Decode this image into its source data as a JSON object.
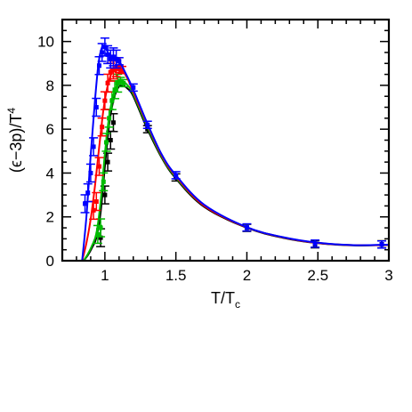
{
  "chart_data": {
    "type": "line",
    "xlabel": "T/T",
    "xlabel_sub": "c",
    "ylabel": "(ϵ−3p)/T",
    "ylabel_sup": "4",
    "xlim": [
      0.7,
      3.0
    ],
    "ylim": [
      0,
      11
    ],
    "x_ticks": [
      1,
      1.5,
      2,
      2.5,
      3
    ],
    "x_tick_labels": [
      "1",
      "1.5",
      "2",
      "2.5",
      "3"
    ],
    "y_ticks": [
      0,
      2,
      4,
      6,
      8,
      10
    ],
    "y_tick_labels": [
      "0",
      "2",
      "4",
      "6",
      "8",
      "10"
    ],
    "grid": false,
    "legend": "none",
    "series": [
      {
        "color": "#000000",
        "x": [
          0.85,
          0.88,
          0.91,
          0.94,
          0.97,
          1.0,
          1.03,
          1.06,
          1.09,
          1.12,
          1.16,
          1.2,
          1.3,
          1.4,
          1.5,
          1.7,
          2.0,
          2.25,
          2.5,
          2.75,
          3.0
        ],
        "y": [
          0.0,
          0.25,
          0.6,
          1.05,
          2.2,
          4.3,
          6.2,
          7.3,
          7.85,
          8.0,
          7.85,
          7.5,
          6.0,
          4.7,
          3.75,
          2.45,
          1.5,
          1.05,
          0.8,
          0.7,
          0.72
        ],
        "points_x": [
          0.97,
          1.0,
          1.02,
          1.04,
          1.06,
          1.3,
          1.5,
          2.0,
          2.48,
          2.95
        ],
        "points_y": [
          1.05,
          3.0,
          4.5,
          5.5,
          6.3,
          6.0,
          3.8,
          1.5,
          0.75,
          0.75
        ]
      },
      {
        "color": "#00bb00",
        "x": [
          0.85,
          0.88,
          0.91,
          0.94,
          0.97,
          1.0,
          1.03,
          1.06,
          1.09,
          1.12,
          1.16,
          1.2,
          1.3,
          1.4,
          1.5,
          1.7,
          2.0,
          2.25,
          2.5,
          2.75,
          3.0
        ],
        "y": [
          0.0,
          0.3,
          0.7,
          1.25,
          2.7,
          4.9,
          6.6,
          7.55,
          8.05,
          8.2,
          8.0,
          7.6,
          6.1,
          4.75,
          3.8,
          2.5,
          1.52,
          1.07,
          0.81,
          0.71,
          0.72
        ],
        "points_x": [
          0.95,
          0.97,
          0.99,
          1.01,
          1.03,
          1.05,
          1.07,
          1.09,
          1.11,
          1.13
        ],
        "points_y": [
          1.2,
          1.5,
          3.6,
          5.4,
          6.5,
          7.3,
          7.8,
          8.1,
          8.2,
          8.1
        ]
      },
      {
        "color": "#ff0000",
        "x": [
          0.84,
          0.87,
          0.9,
          0.93,
          0.96,
          0.99,
          1.02,
          1.05,
          1.08,
          1.12,
          1.16,
          1.2,
          1.3,
          1.4,
          1.5,
          1.7,
          2.0,
          2.25,
          2.5,
          2.75,
          3.0
        ],
        "y": [
          0.0,
          0.8,
          1.9,
          3.4,
          5.2,
          6.9,
          8.0,
          8.6,
          8.8,
          8.7,
          8.3,
          7.7,
          6.2,
          4.8,
          3.85,
          2.5,
          1.52,
          1.07,
          0.81,
          0.71,
          0.72
        ],
        "points_x": [
          0.92,
          0.94,
          0.96,
          0.98,
          1.0,
          1.02,
          1.04,
          1.06,
          1.08,
          1.1,
          1.12
        ],
        "points_y": [
          2.3,
          2.7,
          4.3,
          6.1,
          7.3,
          8.1,
          8.6,
          8.7,
          8.8,
          8.75,
          8.7
        ]
      },
      {
        "color": "#0000ff",
        "x": [
          0.84,
          0.87,
          0.9,
          0.93,
          0.955,
          0.98,
          1.0,
          1.03,
          1.06,
          1.1,
          1.15,
          1.2,
          1.3,
          1.4,
          1.5,
          1.7,
          2.0,
          2.25,
          2.5,
          2.75,
          3.0
        ],
        "y": [
          0.0,
          2.0,
          4.8,
          7.3,
          9.0,
          9.75,
          9.75,
          9.4,
          9.2,
          9.1,
          8.5,
          7.8,
          6.25,
          4.85,
          3.9,
          2.55,
          1.53,
          1.08,
          0.82,
          0.71,
          0.73
        ],
        "points_x": [
          0.86,
          0.88,
          0.9,
          0.92,
          0.94,
          0.96,
          0.98,
          1.0,
          1.02,
          1.04,
          1.06,
          1.08,
          1.1,
          1.2,
          1.3,
          1.5,
          2.0,
          2.48,
          2.95
        ],
        "points_y": [
          2.6,
          3.1,
          4.0,
          5.2,
          7.0,
          8.9,
          9.5,
          9.75,
          9.4,
          9.2,
          9.3,
          9.2,
          9.1,
          7.9,
          6.2,
          3.9,
          1.52,
          0.78,
          0.74
        ]
      }
    ]
  }
}
